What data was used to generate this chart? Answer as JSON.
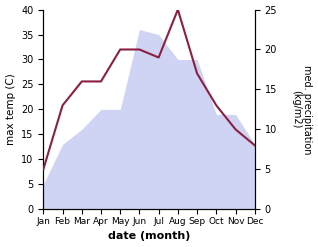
{
  "months": [
    "Jan",
    "Feb",
    "Mar",
    "Apr",
    "May",
    "Jun",
    "Jul",
    "Aug",
    "Sep",
    "Oct",
    "Nov",
    "Dec"
  ],
  "max_temp": [
    5,
    13,
    16,
    20,
    20,
    36,
    35,
    30,
    30,
    19,
    19,
    13
  ],
  "precipitation": [
    5,
    13,
    16,
    16,
    20,
    20,
    19,
    25,
    17,
    13,
    10,
    8
  ],
  "temp_ylim": [
    0,
    40
  ],
  "precip_ylim": [
    0,
    25
  ],
  "temp_fill_color": "#b0b8ee",
  "precip_line_color": "#8b2040",
  "xlabel": "date (month)",
  "ylabel_left": "max temp (C)",
  "ylabel_right": "med. precipitation\n(kg/m2)"
}
